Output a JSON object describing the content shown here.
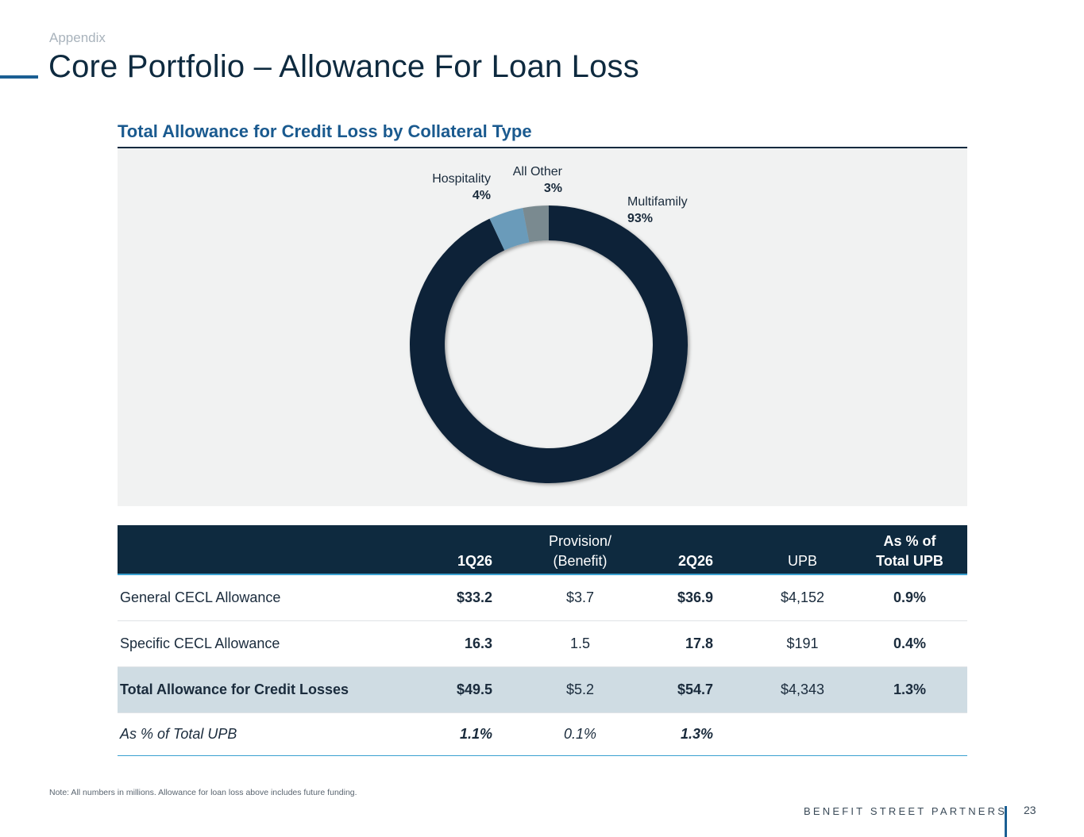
{
  "header": {
    "section": "Appendix",
    "title": "Core Portfolio – Allowance For Loan Loss"
  },
  "chart_data": {
    "type": "pie",
    "title": "Total Allowance for Credit Loss by Collateral Type",
    "slices": [
      {
        "name": "Multifamily",
        "value": 93,
        "label": "93%",
        "color": "#0e2438"
      },
      {
        "name": "Hospitality",
        "value": 4,
        "label": "4%",
        "color": "#6a9bba"
      },
      {
        "name": "All Other",
        "value": 3,
        "label": "3%",
        "color": "#7a8a90"
      }
    ],
    "donut": true
  },
  "table": {
    "headers": {
      "q1": "1Q26",
      "prov_line1": "Provision/",
      "prov_line2": "(Benefit)",
      "q2": "2Q26",
      "upb": "UPB",
      "pct_line1": "As % of",
      "pct_line2": "Total UPB"
    },
    "rows": [
      {
        "label": "General CECL Allowance",
        "q1": "$33.2",
        "prov": "$3.7",
        "q2": "$36.9",
        "upb": "$4,152",
        "pct": "0.9%"
      },
      {
        "label": "Specific CECL Allowance",
        "q1": "16.3",
        "prov": "1.5",
        "q2": "17.8",
        "upb": "$191",
        "pct": "0.4%"
      },
      {
        "label": "Total Allowance for Credit Losses",
        "q1": "$49.5",
        "prov": "$5.2",
        "q2": "$54.7",
        "upb": "$4,343",
        "pct": "1.3%"
      },
      {
        "label": "As % of Total UPB",
        "q1": "1.1%",
        "prov": "0.1%",
        "q2": "1.3%",
        "upb": "",
        "pct": ""
      }
    ]
  },
  "footer": {
    "note": "Note: All numbers in millions. Allowance for loan loss above includes future funding.",
    "brand": "BENEFIT STREET PARTNERS",
    "page": "23"
  }
}
